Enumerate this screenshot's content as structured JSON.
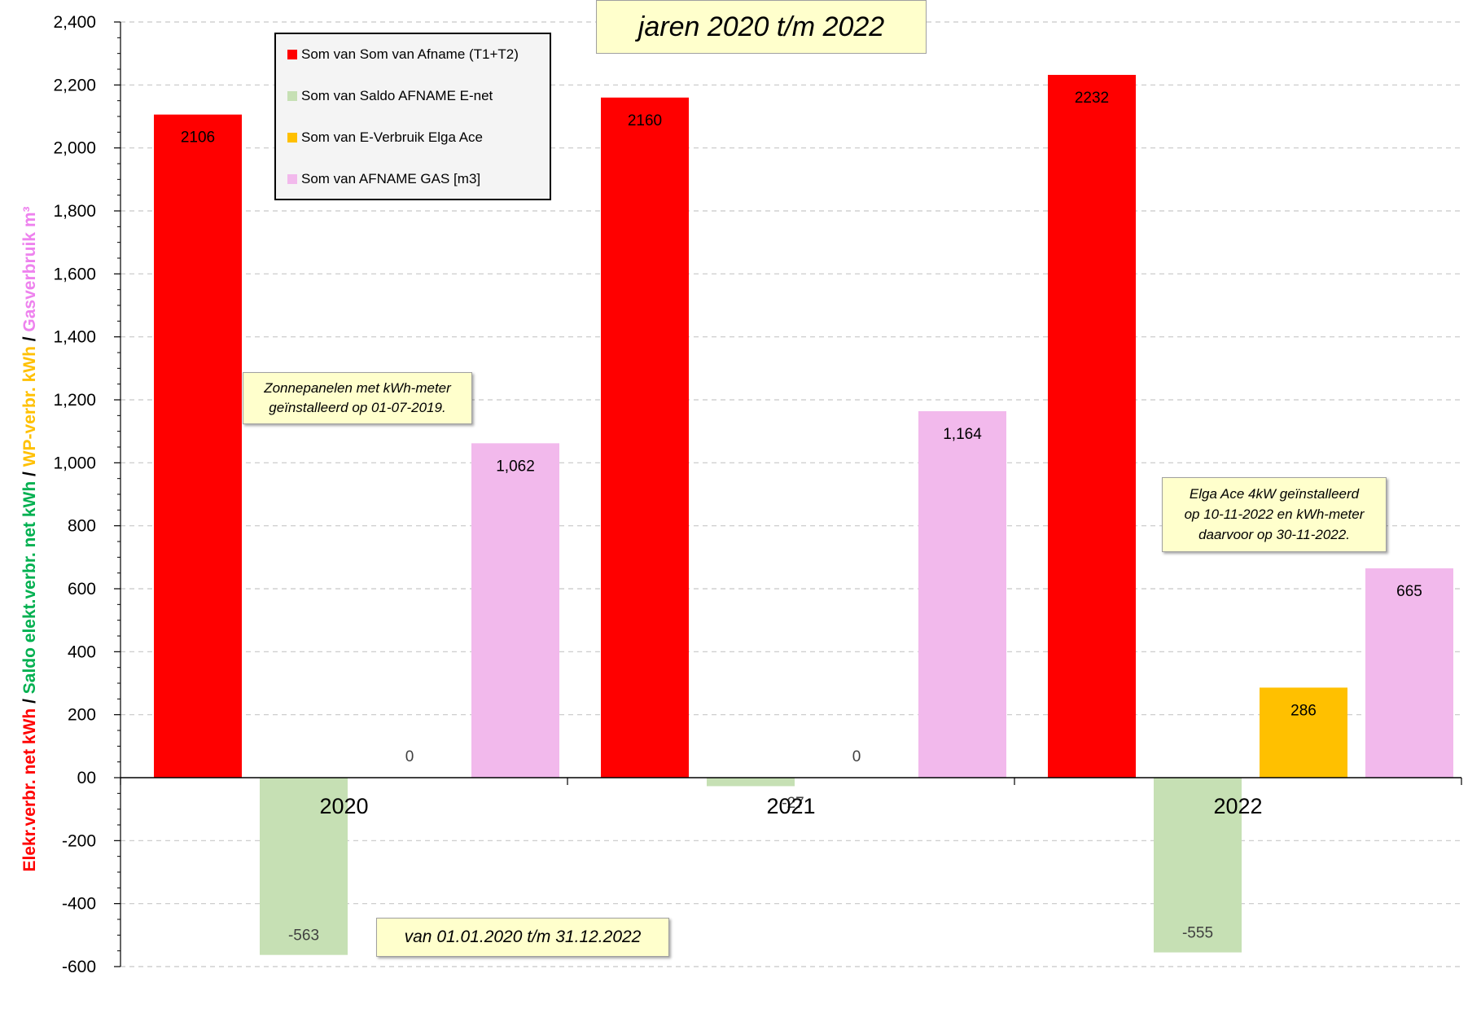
{
  "chart_data": {
    "type": "bar",
    "title": "jaren 2020 t/m 2022",
    "categories": [
      "2020",
      "2021",
      "2022"
    ],
    "series": [
      {
        "name": "Som van Som van Afname (T1+T2)",
        "color": "#ff0000",
        "values": [
          2106,
          2160,
          2232
        ],
        "labels": [
          "2106",
          "2160",
          "2232"
        ]
      },
      {
        "name": "Som van Saldo AFNAME E-net",
        "color": "#c6e0b4",
        "values": [
          -563,
          -27,
          -555
        ],
        "labels": [
          "-563",
          "-27",
          "-555"
        ]
      },
      {
        "name": "Som van E-Verbruik Elga Ace",
        "color": "#ffc000",
        "values": [
          0,
          0,
          286
        ],
        "labels": [
          "0",
          "0",
          "286"
        ]
      },
      {
        "name": "Som van AFNAME GAS [m3]",
        "color": "#f2b9ec",
        "values": [
          1062,
          1164,
          665
        ],
        "labels": [
          "1,062",
          "1,164",
          "665"
        ]
      }
    ],
    "ylim": [
      -600,
      2400
    ],
    "yticks": [
      -600,
      -400,
      -200,
      0,
      200,
      400,
      600,
      800,
      1000,
      1200,
      1400,
      1600,
      1800,
      2000,
      2200,
      2400
    ],
    "ytick_labels": [
      "-600",
      "-400",
      "-200",
      "00",
      "200",
      "400",
      "600",
      "800",
      "1,000",
      "1,200",
      "1,400",
      "1,600",
      "1,800",
      "2,000",
      "2,200",
      "2,400"
    ],
    "ylabel_parts": [
      {
        "text": "Elekr.verbr. net kWh",
        "color": "#ff0000"
      },
      {
        "text": " / ",
        "color": "#000000"
      },
      {
        "text": "Saldo elekt.verbr. net kWh",
        "color": "#00b050"
      },
      {
        "text": " / ",
        "color": "#000000"
      },
      {
        "text": "WP-verbr. kWh",
        "color": "#ffc000"
      },
      {
        "text": " / ",
        "color": "#000000"
      },
      {
        "text": "Gasverbruik m³",
        "color": "#ee82ee"
      }
    ],
    "grid": true,
    "legend_position": "top-left",
    "annotations": {
      "solar_note": [
        "Zonnepanelen met kWh-meter",
        "geïnstalleerd op 01-07-2019."
      ],
      "period_note": "van 01.01.2020 t/m 31.12.2022",
      "heatpump_note": [
        "Elga Ace 4kW geïnstalleerd",
        "op 10-11-2022 en kWh-meter",
        "daarvoor op 30-11-2022."
      ]
    }
  }
}
